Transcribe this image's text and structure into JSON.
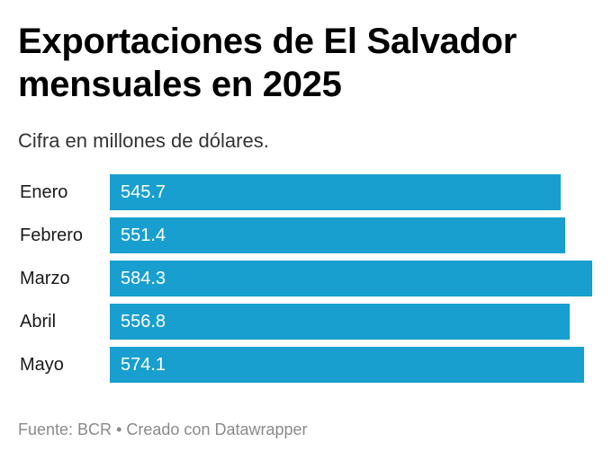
{
  "title": "Exportaciones de El Salvador mensuales en 2025",
  "subtitle": "Cifra en millones de dólares.",
  "footer": {
    "source": "Fuente: BCR",
    "separator": "•",
    "credit": "Creado con Datawrapper"
  },
  "colors": {
    "bar": "#199fcf",
    "bar_value_text": "#ffffff"
  },
  "chart_data": {
    "type": "bar",
    "orientation": "horizontal",
    "categories": [
      "Enero",
      "Febrero",
      "Marzo",
      "Abril",
      "Mayo"
    ],
    "values": [
      545.7,
      551.4,
      584.3,
      556.8,
      574.1
    ],
    "value_labels": [
      "545.7",
      "551.4",
      "584.3",
      "556.8",
      "574.1"
    ],
    "xlim": [
      0,
      584.3
    ],
    "grid": false,
    "legend": "none"
  }
}
